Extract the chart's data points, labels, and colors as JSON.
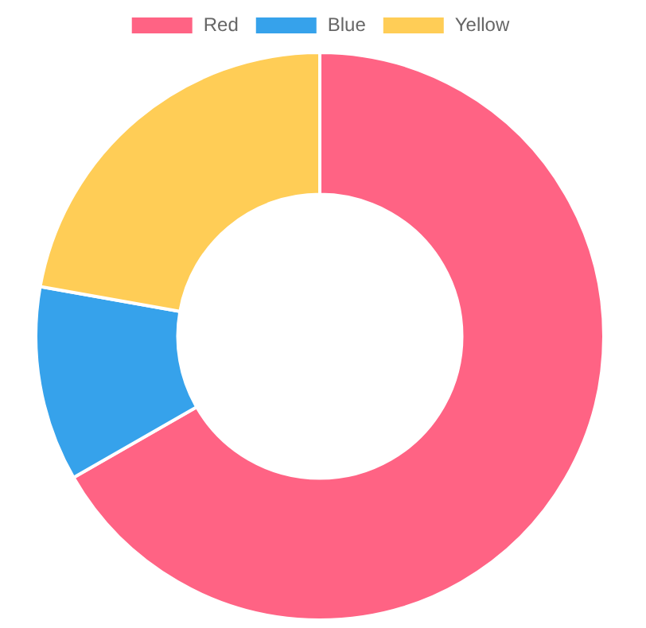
{
  "chart_data": {
    "type": "donut",
    "categories": [
      "Red",
      "Blue",
      "Yellow"
    ],
    "values": [
      66.7,
      11.1,
      22.2
    ],
    "colors": [
      "#ff6384",
      "#36a2eb",
      "#ffcd56"
    ],
    "legend": "top"
  }
}
